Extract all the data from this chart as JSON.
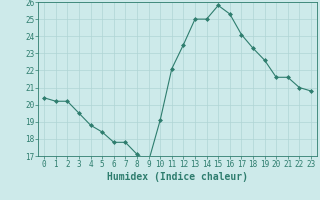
{
  "x": [
    0,
    1,
    2,
    3,
    4,
    5,
    6,
    7,
    8,
    9,
    10,
    11,
    12,
    13,
    14,
    15,
    16,
    17,
    18,
    19,
    20,
    21,
    22,
    23
  ],
  "y": [
    20.4,
    20.2,
    20.2,
    19.5,
    18.8,
    18.4,
    17.8,
    17.8,
    17.1,
    16.7,
    19.1,
    22.1,
    23.5,
    25.0,
    25.0,
    25.8,
    25.3,
    24.1,
    23.3,
    22.6,
    21.6,
    21.6,
    21.0,
    20.8
  ],
  "line_color": "#2e7d6e",
  "marker": "D",
  "marker_size": 2.0,
  "bg_color": "#cdeaea",
  "grid_color": "#b0d5d5",
  "xlabel": "Humidex (Indice chaleur)",
  "xlim": [
    -0.5,
    23.5
  ],
  "ylim": [
    17,
    26
  ],
  "yticks": [
    17,
    18,
    19,
    20,
    21,
    22,
    23,
    24,
    25,
    26
  ],
  "xticks": [
    0,
    1,
    2,
    3,
    4,
    5,
    6,
    7,
    8,
    9,
    10,
    11,
    12,
    13,
    14,
    15,
    16,
    17,
    18,
    19,
    20,
    21,
    22,
    23
  ],
  "tick_color": "#2e7d6e",
  "label_color": "#2e7d6e",
  "axis_color": "#2e7d6e",
  "tick_fontsize": 5.5,
  "xlabel_fontsize": 7.0
}
